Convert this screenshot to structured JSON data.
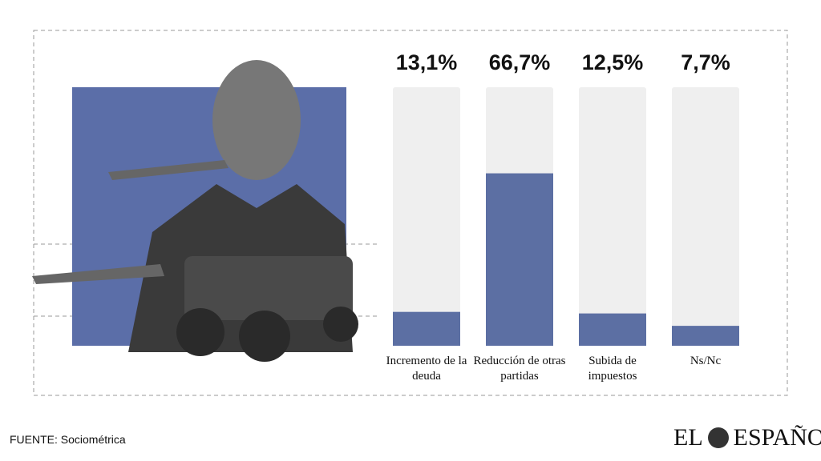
{
  "chart_data": {
    "type": "bar",
    "categories": [
      "Incremento de la deuda",
      "Reducción de otras partidas",
      "Subida de impuestos",
      "Ns/Nc"
    ],
    "values": [
      13.1,
      66.7,
      12.5,
      7.7
    ],
    "value_labels": [
      "13,1%",
      "66,7%",
      "12,5%",
      "7,7%"
    ],
    "color": "#5c6fa3",
    "track_color": "#efefef",
    "ylim": [
      0,
      100
    ]
  },
  "source": "FUENTE: Sociométrica",
  "logo": {
    "left": "EL",
    "right": "ESPAÑOL"
  }
}
